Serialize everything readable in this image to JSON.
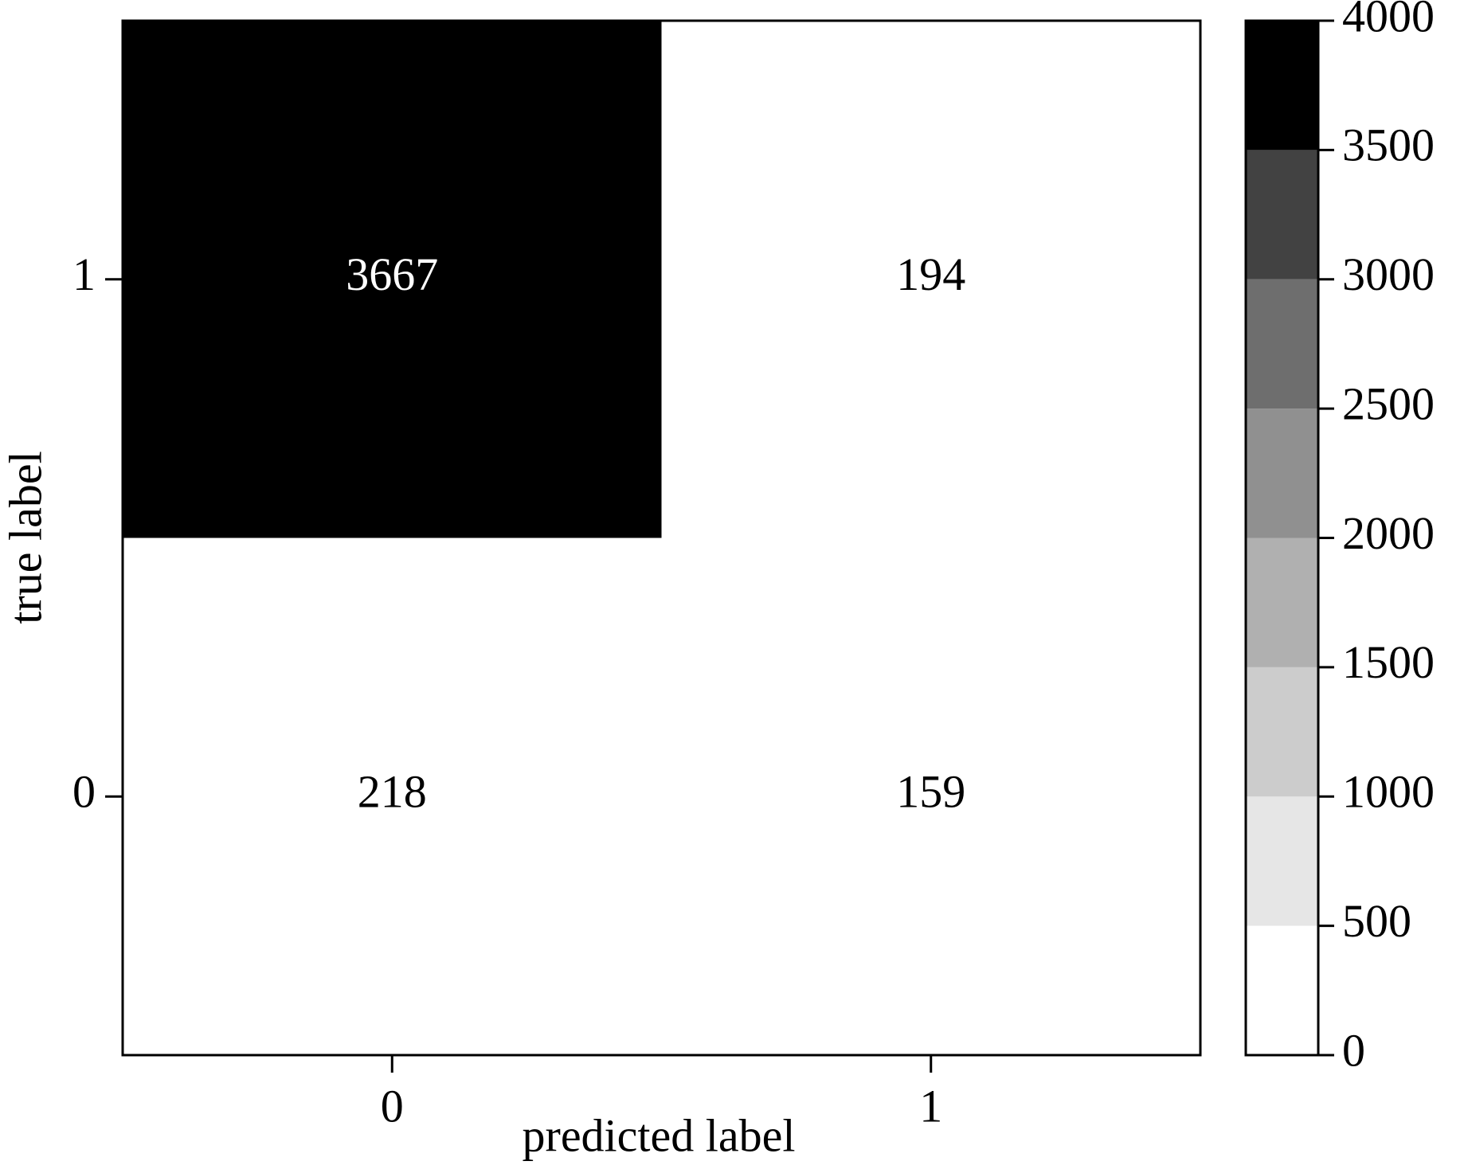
{
  "chart_data": {
    "type": "heatmap",
    "xlabel": "predicted label",
    "ylabel": "true label",
    "x_categories": [
      "0",
      "1"
    ],
    "y_categories": [
      "1",
      "0"
    ],
    "values": [
      [
        3667,
        194
      ],
      [
        218,
        159
      ]
    ],
    "colorbar": {
      "lim": [
        0,
        4000
      ],
      "ticks": [
        0,
        500,
        1000,
        1500,
        2000,
        2500,
        3000,
        3500,
        4000
      ],
      "colors": [
        "#ffffff",
        "#e6e6e6",
        "#cccccc",
        "#b0b0b0",
        "#909090",
        "#6e6e6e",
        "#424242",
        "#000000"
      ]
    }
  }
}
